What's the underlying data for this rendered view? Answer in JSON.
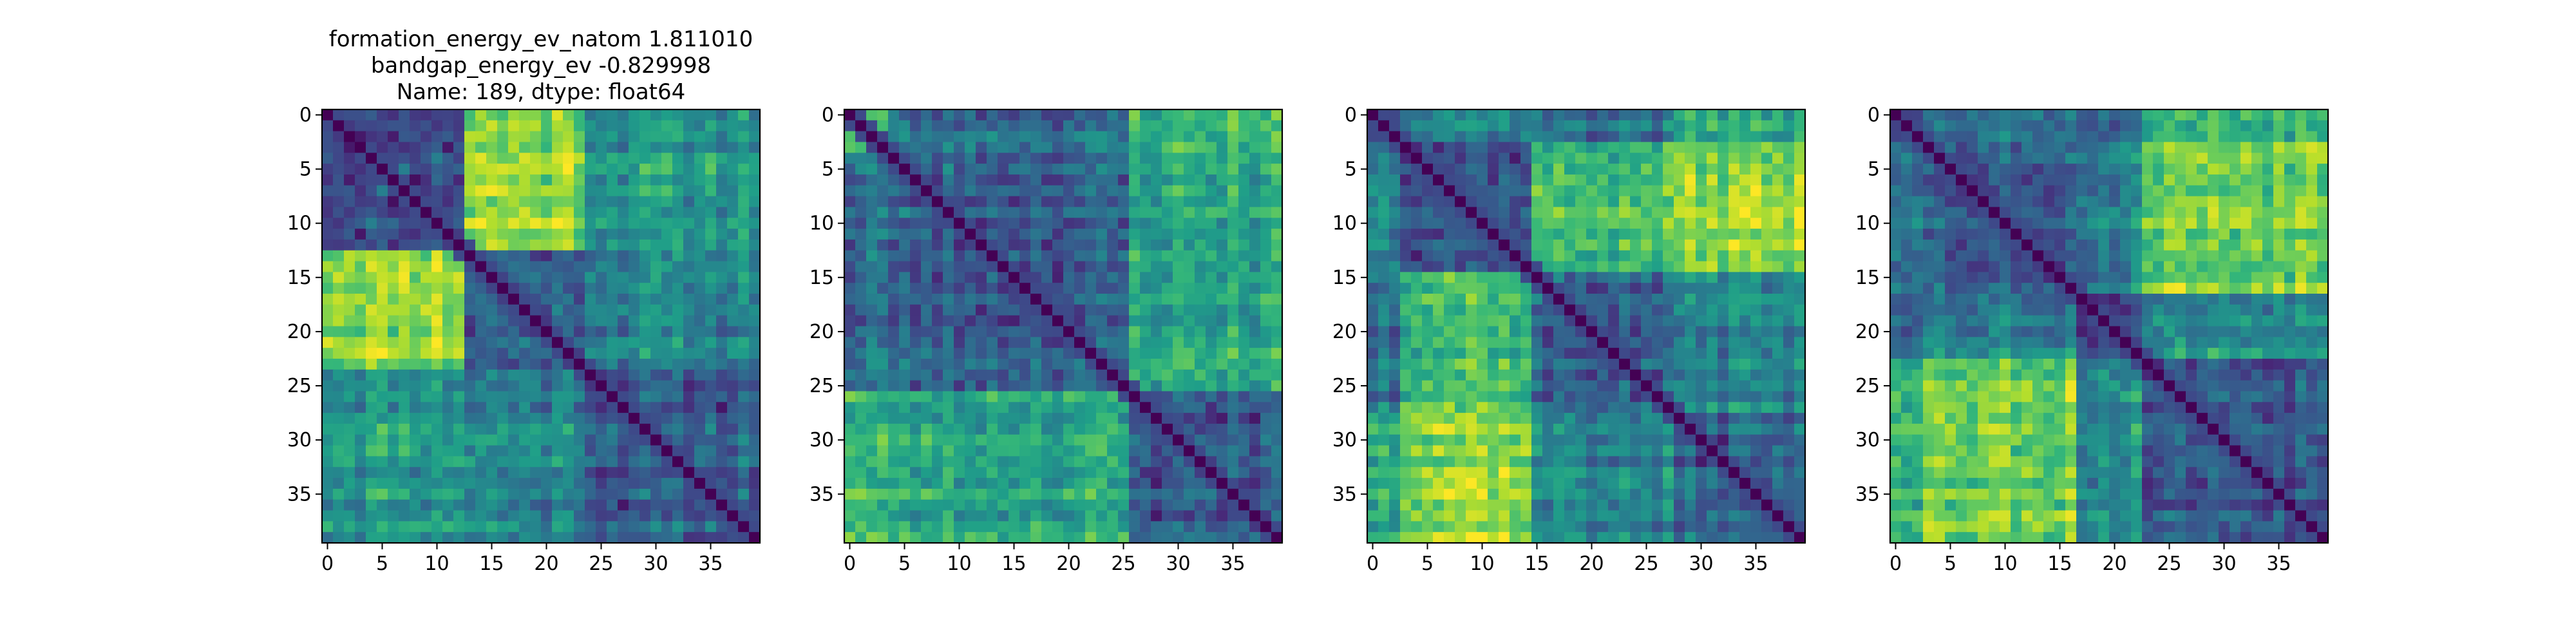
{
  "figure": {
    "title_lines": [
      "formation_energy_ev_natom    1.811010",
      "bandgap_energy_ev           -0.829998",
      "Name: 189, dtype: float64"
    ]
  },
  "chart_data": [
    {
      "type": "heatmap",
      "colormap": "viridis",
      "n": 40,
      "title": [
        "formation_energy_ev_natom    1.811010",
        "bandgap_energy_ev           -0.829998",
        "Name: 189, dtype: float64"
      ],
      "xticks": [
        0,
        5,
        10,
        15,
        20,
        25,
        30,
        35
      ],
      "yticks": [
        0,
        5,
        10,
        15,
        20,
        25,
        30,
        35
      ],
      "groups": [
        0,
        13,
        24,
        40
      ],
      "block_levels": [
        [
          0.25,
          0.85,
          0.55
        ],
        [
          0.85,
          0.3,
          0.45
        ],
        [
          0.55,
          0.45,
          0.3
        ]
      ],
      "diagonal": 0.0,
      "seed": 11
    },
    {
      "type": "heatmap",
      "colormap": "viridis",
      "n": 40,
      "title": [],
      "xticks": [
        0,
        5,
        10,
        15,
        20,
        25,
        30,
        35
      ],
      "yticks": [
        0,
        5,
        10,
        15,
        20,
        25,
        30,
        35
      ],
      "groups": [
        0,
        2,
        4,
        26,
        40
      ],
      "block_levels": [
        [
          0.6,
          0.75,
          0.35,
          0.7
        ],
        [
          0.75,
          0.2,
          0.4,
          0.65
        ],
        [
          0.35,
          0.4,
          0.3,
          0.6
        ],
        [
          0.7,
          0.65,
          0.6,
          0.3
        ]
      ],
      "diagonal": 0.0,
      "seed": 23
    },
    {
      "type": "heatmap",
      "colormap": "viridis",
      "n": 40,
      "title": [],
      "xticks": [
        0,
        5,
        10,
        15,
        20,
        25,
        30,
        35
      ],
      "yticks": [
        0,
        5,
        10,
        15,
        20,
        25,
        30,
        35
      ],
      "groups": [
        0,
        3,
        15,
        28,
        40
      ],
      "block_levels": [
        [
          0.35,
          0.5,
          0.4,
          0.6
        ],
        [
          0.5,
          0.3,
          0.7,
          0.85
        ],
        [
          0.4,
          0.7,
          0.3,
          0.45
        ],
        [
          0.6,
          0.85,
          0.45,
          0.3
        ]
      ],
      "diagonal": 0.0,
      "seed": 37
    },
    {
      "type": "heatmap",
      "colormap": "viridis",
      "n": 40,
      "title": [],
      "xticks": [
        0,
        5,
        10,
        15,
        20,
        25,
        30,
        35
      ],
      "yticks": [
        0,
        5,
        10,
        15,
        20,
        25,
        30,
        35
      ],
      "groups": [
        0,
        3,
        17,
        23,
        40
      ],
      "block_levels": [
        [
          0.35,
          0.45,
          0.4,
          0.7
        ],
        [
          0.45,
          0.3,
          0.45,
          0.8
        ],
        [
          0.4,
          0.45,
          0.25,
          0.5
        ],
        [
          0.7,
          0.8,
          0.5,
          0.3
        ]
      ],
      "diagonal": 0.0,
      "seed": 53
    }
  ]
}
